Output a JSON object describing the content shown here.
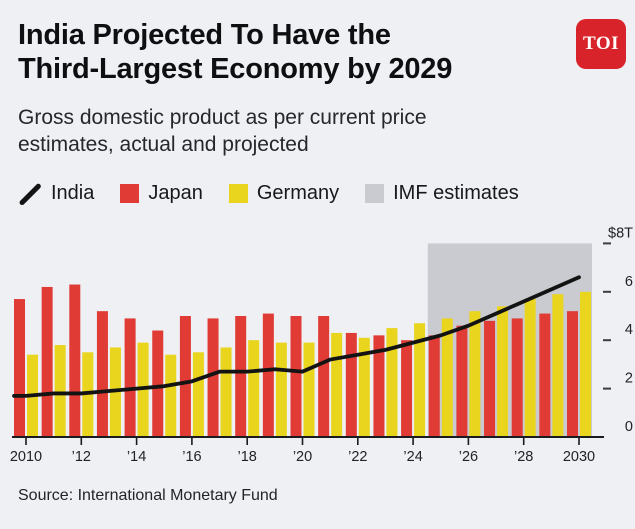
{
  "header": {
    "title_lines": [
      "India Projected To Have the",
      "Third-Largest Economy by 2029"
    ],
    "logo_text": "TOI",
    "logo_color": "#d8232a"
  },
  "subtitle_lines": [
    "Gross domestic product as per current price",
    "estimates, actual and projected"
  ],
  "legend": {
    "items": [
      {
        "label": "India",
        "swatch": "line",
        "color": "#141414"
      },
      {
        "label": "Japan",
        "swatch": "square",
        "color": "#e03b34"
      },
      {
        "label": "Germany",
        "swatch": "square",
        "color": "#e9d41e"
      },
      {
        "label": "IMF estimates",
        "swatch": "square",
        "color": "#cacbd0"
      }
    ]
  },
  "source": "Source: International Monetary Fund",
  "chart_data": {
    "type": "bar",
    "title": "India Projected To Have the Third-Largest Economy by 2029",
    "subtitle": "Gross domestic product as per current price estimates, actual and projected",
    "unit": "trillion USD",
    "x": [
      2010,
      2011,
      2012,
      2013,
      2014,
      2015,
      2016,
      2017,
      2018,
      2019,
      2020,
      2021,
      2022,
      2023,
      2024,
      2025,
      2026,
      2027,
      2028,
      2029,
      2030
    ],
    "series": [
      {
        "name": "Japan",
        "type": "bar",
        "color": "#e03b34",
        "values": [
          5.7,
          6.2,
          6.3,
          5.2,
          4.9,
          4.4,
          5.0,
          4.9,
          5.0,
          5.1,
          5.0,
          5.0,
          4.3,
          4.2,
          4.0,
          4.2,
          4.6,
          4.8,
          4.9,
          5.1,
          5.2
        ]
      },
      {
        "name": "Germany",
        "type": "bar",
        "color": "#e9d41e",
        "values": [
          3.4,
          3.8,
          3.5,
          3.7,
          3.9,
          3.4,
          3.5,
          3.7,
          4.0,
          3.9,
          3.9,
          4.3,
          4.1,
          4.5,
          4.7,
          4.9,
          5.2,
          5.4,
          5.7,
          5.9,
          6.0
        ]
      },
      {
        "name": "India",
        "type": "line",
        "color": "#131313",
        "values": [
          1.7,
          1.8,
          1.8,
          1.9,
          2.0,
          2.1,
          2.3,
          2.7,
          2.7,
          2.8,
          2.7,
          3.2,
          3.4,
          3.6,
          3.9,
          4.2,
          4.6,
          5.1,
          5.6,
          6.1,
          6.6
        ]
      }
    ],
    "x_ticks": [
      2010,
      2012,
      2014,
      2016,
      2018,
      2020,
      2022,
      2024,
      2026,
      2028,
      2030
    ],
    "x_tick_labels": [
      "2010",
      "’12",
      "’14",
      "’16",
      "’18",
      "’20",
      "’22",
      "’24",
      "’26",
      "’28",
      "2030"
    ],
    "y_ticks": [
      0,
      2,
      4,
      6,
      8
    ],
    "y_tick_labels": [
      "0",
      "2",
      "4",
      "6",
      "$8T"
    ],
    "ylim": [
      0,
      8.6
    ],
    "grid": false,
    "legend_position": "top",
    "projection": {
      "label": "IMF estimates",
      "start_year": 2025,
      "end_year": 2030,
      "color": "#cacbd0"
    }
  }
}
